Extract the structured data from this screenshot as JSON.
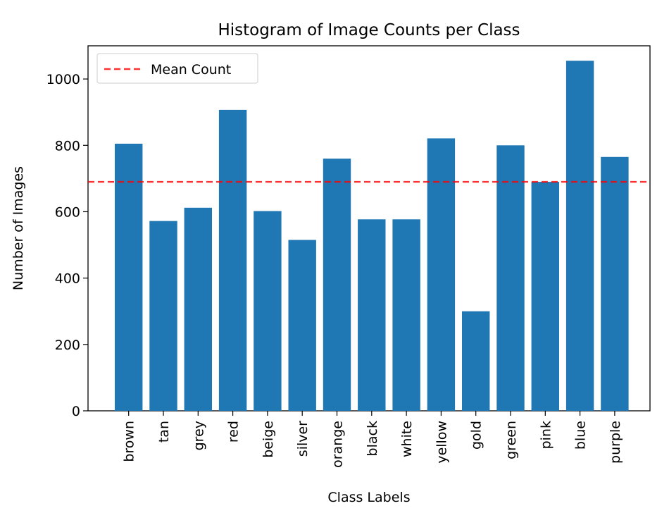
{
  "chart_data": {
    "type": "bar",
    "title": "Histogram of Image Counts per Class",
    "xlabel": "Class Labels",
    "ylabel": "Number of Images",
    "categories": [
      "brown",
      "tan",
      "grey",
      "red",
      "beige",
      "silver",
      "orange",
      "black",
      "white",
      "yellow",
      "gold",
      "green",
      "pink",
      "blue",
      "purple"
    ],
    "values": [
      805,
      572,
      612,
      907,
      602,
      515,
      760,
      577,
      577,
      821,
      300,
      800,
      690,
      1055,
      765
    ],
    "ylim": [
      0,
      1100
    ],
    "yticks": [
      0,
      200,
      400,
      600,
      800,
      1000
    ],
    "bar_color": "#1f77b4",
    "mean_line": {
      "label": "Mean Count",
      "value": 690,
      "color": "#ff0000",
      "style": "dashed"
    },
    "legend": {
      "placement": "upper-left",
      "entries": [
        "Mean Count"
      ]
    },
    "grid": false
  }
}
